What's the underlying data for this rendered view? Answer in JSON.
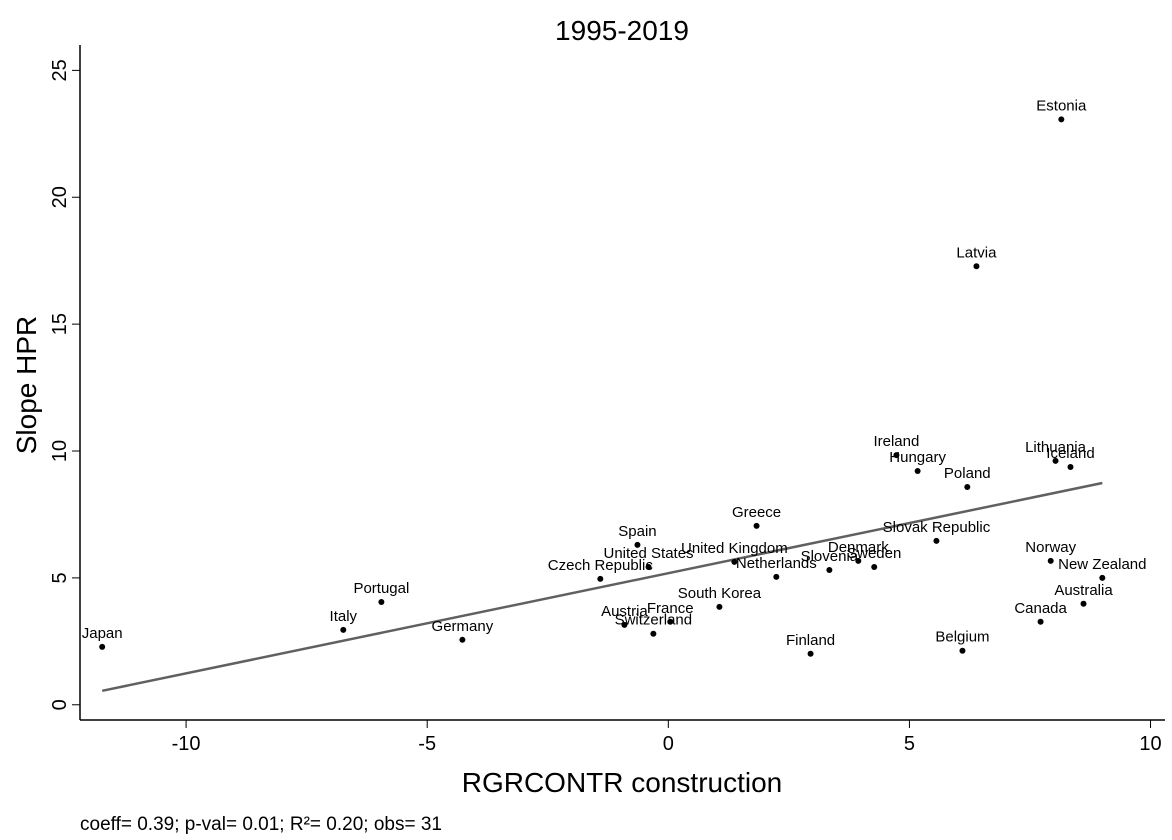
{
  "chart_data": {
    "type": "scatter",
    "title": "1995-2019",
    "x_label": "RGRCONTR construction",
    "y_label": "Slope HPR",
    "note": "coeff= 0.39; p-val= 0.01; R²= 0.20; obs=   31",
    "color": "#000000",
    "xlim": [
      -12.2,
      10.3
    ],
    "ylim": [
      -0.6,
      26
    ],
    "xticks": [
      -10,
      -5,
      0,
      5,
      10
    ],
    "yticks": [
      0,
      5,
      10,
      15,
      20,
      25
    ],
    "labels": [
      "Japan",
      "Italy",
      "Portugal",
      "Germany",
      "Czech Republic",
      "Spain",
      "United States",
      "Austria",
      "Switzerland",
      "France",
      "United Kingdom",
      "South Korea",
      "Netherlands",
      "Greece",
      "Finland",
      "Slovenia",
      "Denmark",
      "Sweden",
      "Ireland",
      "Hungary",
      "Slovak Republic",
      "Poland",
      "Latvia",
      "Belgium",
      "Estonia",
      "Lithuania",
      "Iceland",
      "Norway",
      "New Zealand",
      "Australia",
      "Canada"
    ],
    "x": [
      -11.74,
      -6.74,
      -5.95,
      -4.27,
      -1.41,
      -0.64,
      -0.41,
      -0.91,
      -0.31,
      0.04,
      1.37,
      1.06,
      2.24,
      1.83,
      2.95,
      3.34,
      3.94,
      4.27,
      4.73,
      5.17,
      5.56,
      6.2,
      6.39,
      6.1,
      8.15,
      8.03,
      8.34,
      7.93,
      9.0,
      8.61,
      7.72
    ],
    "values": [
      2.28,
      2.95,
      4.05,
      2.56,
      4.96,
      6.3,
      5.43,
      3.15,
      2.8,
      3.27,
      5.63,
      3.86,
      5.04,
      7.05,
      2.01,
      5.31,
      5.67,
      5.43,
      9.84,
      9.21,
      6.46,
      8.58,
      17.28,
      2.13,
      23.07,
      9.61,
      9.37,
      5.67,
      5.0,
      3.98,
      3.27
    ],
    "fit_line": {
      "color": "#606060",
      "x": [
        -11.74,
        9.0
      ],
      "values": [
        0.55,
        8.74
      ]
    }
  }
}
